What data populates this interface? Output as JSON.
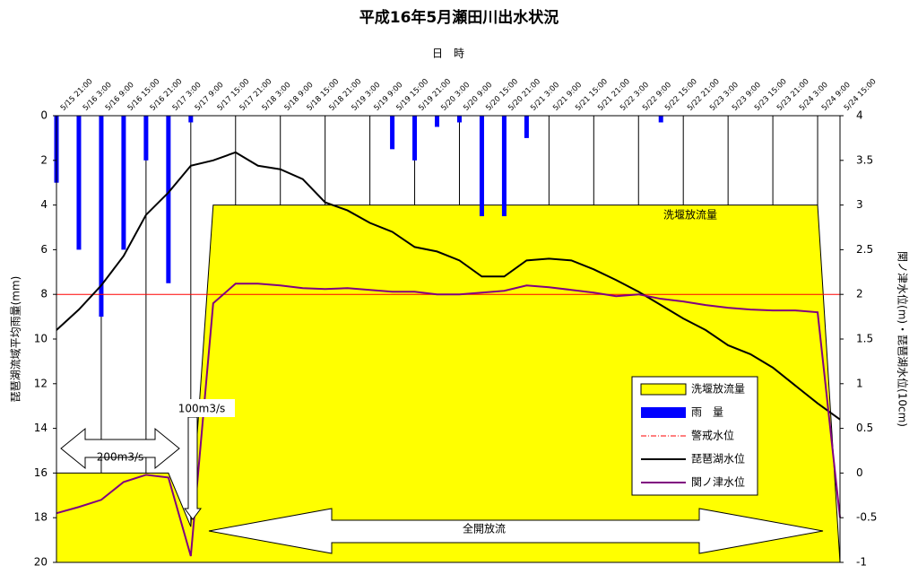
{
  "chart_data": {
    "type": "combo",
    "title": "平成16年5月瀬田川出水状況",
    "x_label": "日　時",
    "y_label": "琵琶湖流域平均雨量(mm)",
    "y2_label": "関ノ津水位(m)・琵琶湖水位(10cm)",
    "categories": [
      "5/15 21:00",
      "5/16 3:00",
      "5/16 9:00",
      "5/16 15:00",
      "5/16 21:00",
      "5/17 3:00",
      "5/17 9:00",
      "5/17 15:00",
      "5/17 21:00",
      "5/18 3:00",
      "5/18 9:00",
      "5/18 15:00",
      "5/18 21:00",
      "5/19 3:00",
      "5/19 9:00",
      "5/19 15:00",
      "5/19 21:00",
      "5/20 3:00",
      "5/20 9:00",
      "5/20 15:00",
      "5/20 21:00",
      "5/21 3:00",
      "5/21 9:00",
      "5/21 15:00",
      "5/21 21:00",
      "5/22 3:00",
      "5/22 9:00",
      "5/22 15:00",
      "5/22 21:00",
      "5/23 3:00",
      "5/23 9:00",
      "5/23 15:00",
      "5/23 21:00",
      "5/24 3:00",
      "5/24 9:00",
      "5/24 15:00"
    ],
    "ylim": [
      0,
      20
    ],
    "y_reversed": true,
    "yticks": [
      0,
      2,
      4,
      6,
      8,
      10,
      12,
      14,
      16,
      18,
      20
    ],
    "y2lim": [
      -1,
      4
    ],
    "y2ticks": [
      -1,
      -0.5,
      0,
      0.5,
      1,
      1.5,
      2,
      2.5,
      3,
      3.5,
      4
    ],
    "grid": "x",
    "legend": "lower right",
    "series": [
      {
        "name": "洗堰放流量",
        "type": "area",
        "color": "#ffff00",
        "axis": "y2",
        "values": [
          0,
          0,
          0,
          0,
          0,
          0,
          -0.6,
          3,
          3,
          3,
          3,
          3,
          3,
          3,
          3,
          3,
          3,
          3,
          3,
          3,
          3,
          3,
          3,
          3,
          3,
          3,
          3,
          3,
          3,
          3,
          3,
          3,
          3,
          3,
          3,
          -1
        ]
      },
      {
        "name": "雨　量",
        "type": "bar",
        "color": "#0000ff",
        "values": [
          3,
          6,
          9,
          6,
          2,
          7.5,
          0.3,
          0,
          0,
          0,
          0,
          0,
          0,
          0,
          0,
          1.5,
          2,
          0.5,
          0.3,
          4.5,
          4.5,
          1,
          0,
          0,
          0,
          0,
          0,
          0.3,
          0,
          0,
          0,
          0,
          0,
          0,
          0,
          0
        ]
      },
      {
        "name": "警戒水位",
        "type": "hline",
        "color": "#ff0000",
        "axis": "y2",
        "value": 2
      },
      {
        "name": "琵琶湖水位",
        "type": "line",
        "color": "#000000",
        "axis": "y2",
        "values": [
          1.6,
          1.83,
          2.1,
          2.43,
          2.89,
          3.14,
          3.44,
          3.5,
          3.59,
          3.44,
          3.4,
          3.29,
          3.03,
          2.94,
          2.8,
          2.7,
          2.53,
          2.48,
          2.38,
          2.2,
          2.2,
          2.38,
          2.4,
          2.38,
          2.28,
          2.16,
          2.03,
          1.88,
          1.73,
          1.6,
          1.43,
          1.33,
          1.18,
          0.98,
          0.78,
          0.6
        ]
      },
      {
        "name": "関ノ津水位",
        "type": "line",
        "color": "#800080",
        "axis": "y2",
        "values": [
          -0.45,
          -0.38,
          -0.3,
          -0.1,
          -0.02,
          -0.05,
          -0.93,
          1.9,
          2.12,
          2.12,
          2.1,
          2.07,
          2.06,
          2.07,
          2.05,
          2.03,
          2.03,
          2,
          2,
          2.02,
          2.04,
          2.1,
          2.08,
          2.05,
          2.02,
          1.98,
          2,
          1.95,
          1.92,
          1.88,
          1.85,
          1.83,
          1.82,
          1.82,
          1.8,
          -0.5
        ]
      }
    ],
    "annotations": [
      "洗堰放流量",
      "100m3/s",
      "200m3/s",
      "全開放流"
    ]
  }
}
